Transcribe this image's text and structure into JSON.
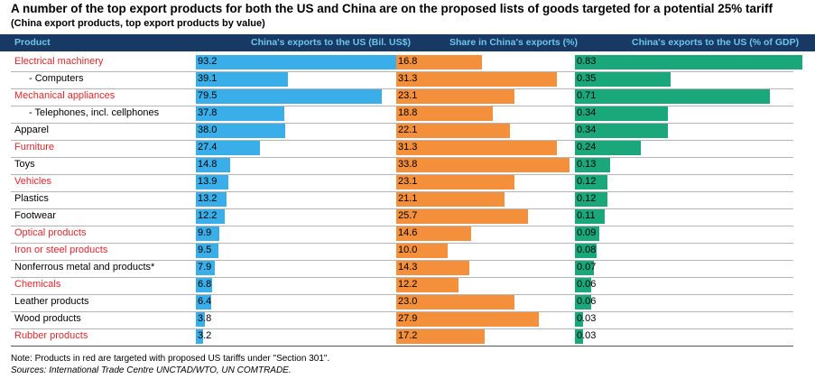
{
  "title": "A number of the top export products for both the US and China are on the proposed lists of goods targeted for a potential 25% tariff",
  "subtitle": "(China export products, top export products by value)",
  "colors": {
    "header_bg": "#173963",
    "header_text": "#6ec6ee",
    "targeted_text": "#e0262b",
    "bar_exports": "#3aaee8",
    "bar_share": "#f4903c",
    "bar_gdp": "#1aa87a"
  },
  "chart_data": {
    "type": "bar",
    "title": "A number of the top export products for both the US and China are on the proposed lists of goods targeted for a potential 25% tariff",
    "subtitle": "(China export products, top export products by value)",
    "columns": [
      "Product",
      "China's exports to the US (Bil. US$)",
      "Share in China's exports (%)",
      "China's exports to the US (% of GDP)"
    ],
    "categories": [
      "Electrical machinery",
      "- Computers",
      "Mechanical appliances",
      "- Telephones, incl. cellphones",
      "Apparel",
      "Furniture",
      "Toys",
      "Vehicles",
      "Plastics",
      "Footwear",
      "Optical products",
      "Iron or steel products",
      "Nonferrous metal and products*",
      "Chemicals",
      "Leather products",
      "Wood products",
      "Rubber products"
    ],
    "targeted": [
      true,
      false,
      true,
      false,
      false,
      true,
      false,
      true,
      false,
      false,
      true,
      true,
      false,
      true,
      false,
      false,
      true
    ],
    "indented": [
      false,
      true,
      false,
      true,
      false,
      false,
      false,
      false,
      false,
      false,
      false,
      false,
      false,
      false,
      false,
      false,
      false
    ],
    "series": [
      {
        "name": "China's exports to the US (Bil. US$)",
        "labels": [
          "93.2",
          "39.1",
          "79.5",
          "37.8",
          "38.0",
          "27.4",
          "14.8",
          "13.9",
          "13.2",
          "12.2",
          "9.9",
          "9.5",
          "7.9",
          "6.8",
          "6.4",
          "3.8",
          "3.2"
        ],
        "values": [
          93.2,
          39.1,
          79.5,
          37.8,
          38.0,
          27.4,
          14.8,
          13.9,
          13.2,
          12.2,
          9.9,
          9.5,
          7.9,
          6.8,
          6.4,
          3.8,
          3.2
        ],
        "max": 93.2
      },
      {
        "name": "Share in China's exports (%)",
        "labels": [
          "16.8",
          "31.3",
          "23.1",
          "18.8",
          "22.1",
          "31.3",
          "33.8",
          "23.1",
          "21.1",
          "25.7",
          "14.6",
          "10.0",
          "14.3",
          "12.2",
          "23.0",
          "27.9",
          "17.2"
        ],
        "values": [
          16.8,
          31.3,
          23.1,
          18.8,
          22.1,
          31.3,
          33.8,
          23.1,
          21.1,
          25.7,
          14.6,
          10.0,
          14.3,
          12.2,
          23.0,
          27.9,
          17.2
        ],
        "max": 33.8
      },
      {
        "name": "China's exports to the US (% of GDP)",
        "labels": [
          "0.83",
          "0.35",
          "0.71",
          "0.34",
          "0.34",
          "0.24",
          "0.13",
          "0.12",
          "0.12",
          "0.11",
          "0.09",
          "0.08",
          "0.07",
          "0.06",
          "0.06",
          "0.03",
          "0.03"
        ],
        "values": [
          0.83,
          0.35,
          0.71,
          0.34,
          0.34,
          0.24,
          0.13,
          0.12,
          0.12,
          0.11,
          0.09,
          0.08,
          0.07,
          0.06,
          0.06,
          0.03,
          0.03
        ],
        "max": 0.83
      }
    ]
  },
  "note": "Note: Products in red are targeted with proposed US tariffs under \"Section 301\".",
  "source": "Sources: International Trade Centre UNCTAD/WTO, UN COMTRADE."
}
